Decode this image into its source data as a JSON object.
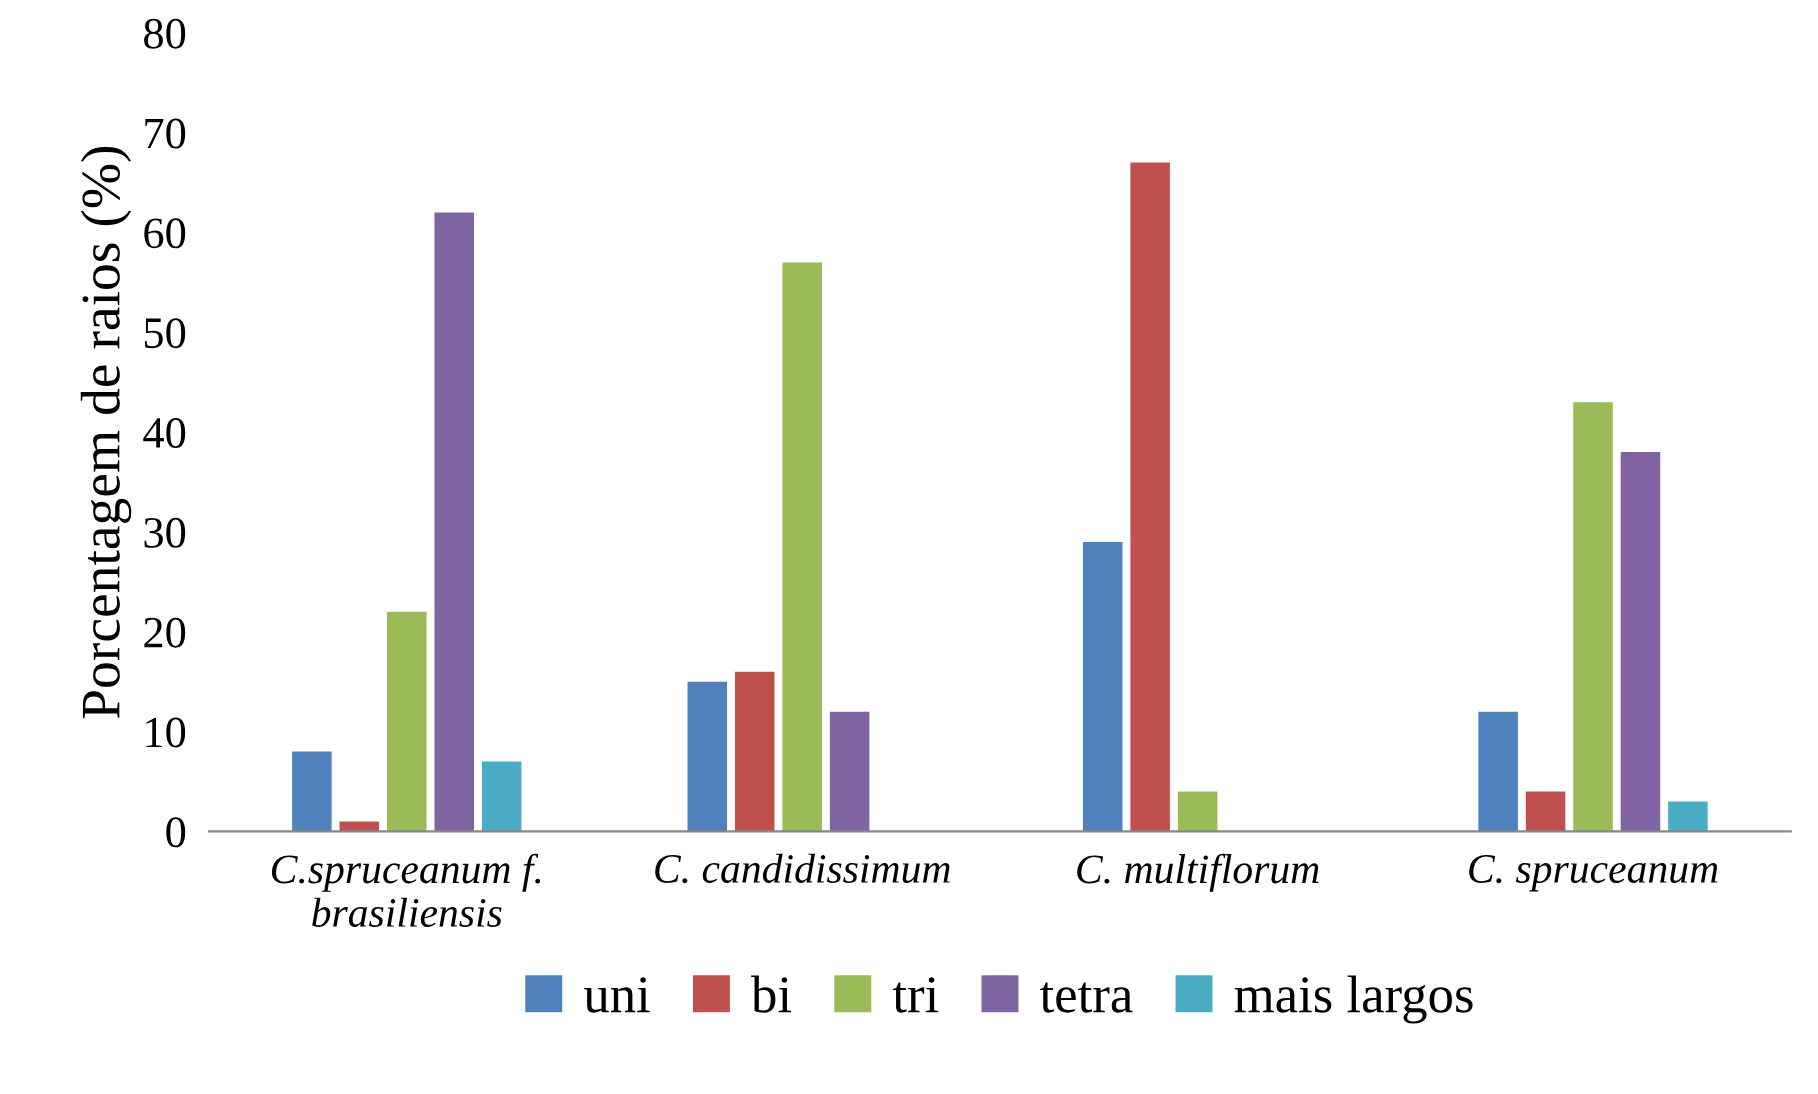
{
  "chart_data": {
    "type": "bar",
    "ylabel": "Porcentagem de raios (%)",
    "categories": [
      "C.spruceanum f.\nbrasiliensis",
      "C. candidissimum",
      "C. multiflorum",
      "C. spruceanum"
    ],
    "series": [
      {
        "name": "uni",
        "color": "#4f81bd",
        "values": [
          8,
          15,
          29,
          12
        ]
      },
      {
        "name": "bi",
        "color": "#c0504d",
        "values": [
          1,
          16,
          67,
          4
        ]
      },
      {
        "name": "tri",
        "color": "#9bbb59",
        "values": [
          22,
          57,
          4,
          43
        ]
      },
      {
        "name": "tetra",
        "color": "#8064a2",
        "values": [
          62,
          12,
          0,
          38
        ]
      },
      {
        "name": "mais largos",
        "color": "#4bacc6",
        "values": [
          7,
          0,
          0,
          3
        ]
      }
    ],
    "ylim": [
      0,
      80
    ],
    "yticks": [
      0,
      10,
      20,
      30,
      40,
      50,
      60,
      70,
      80
    ],
    "grid": false,
    "legend": "bottom"
  }
}
